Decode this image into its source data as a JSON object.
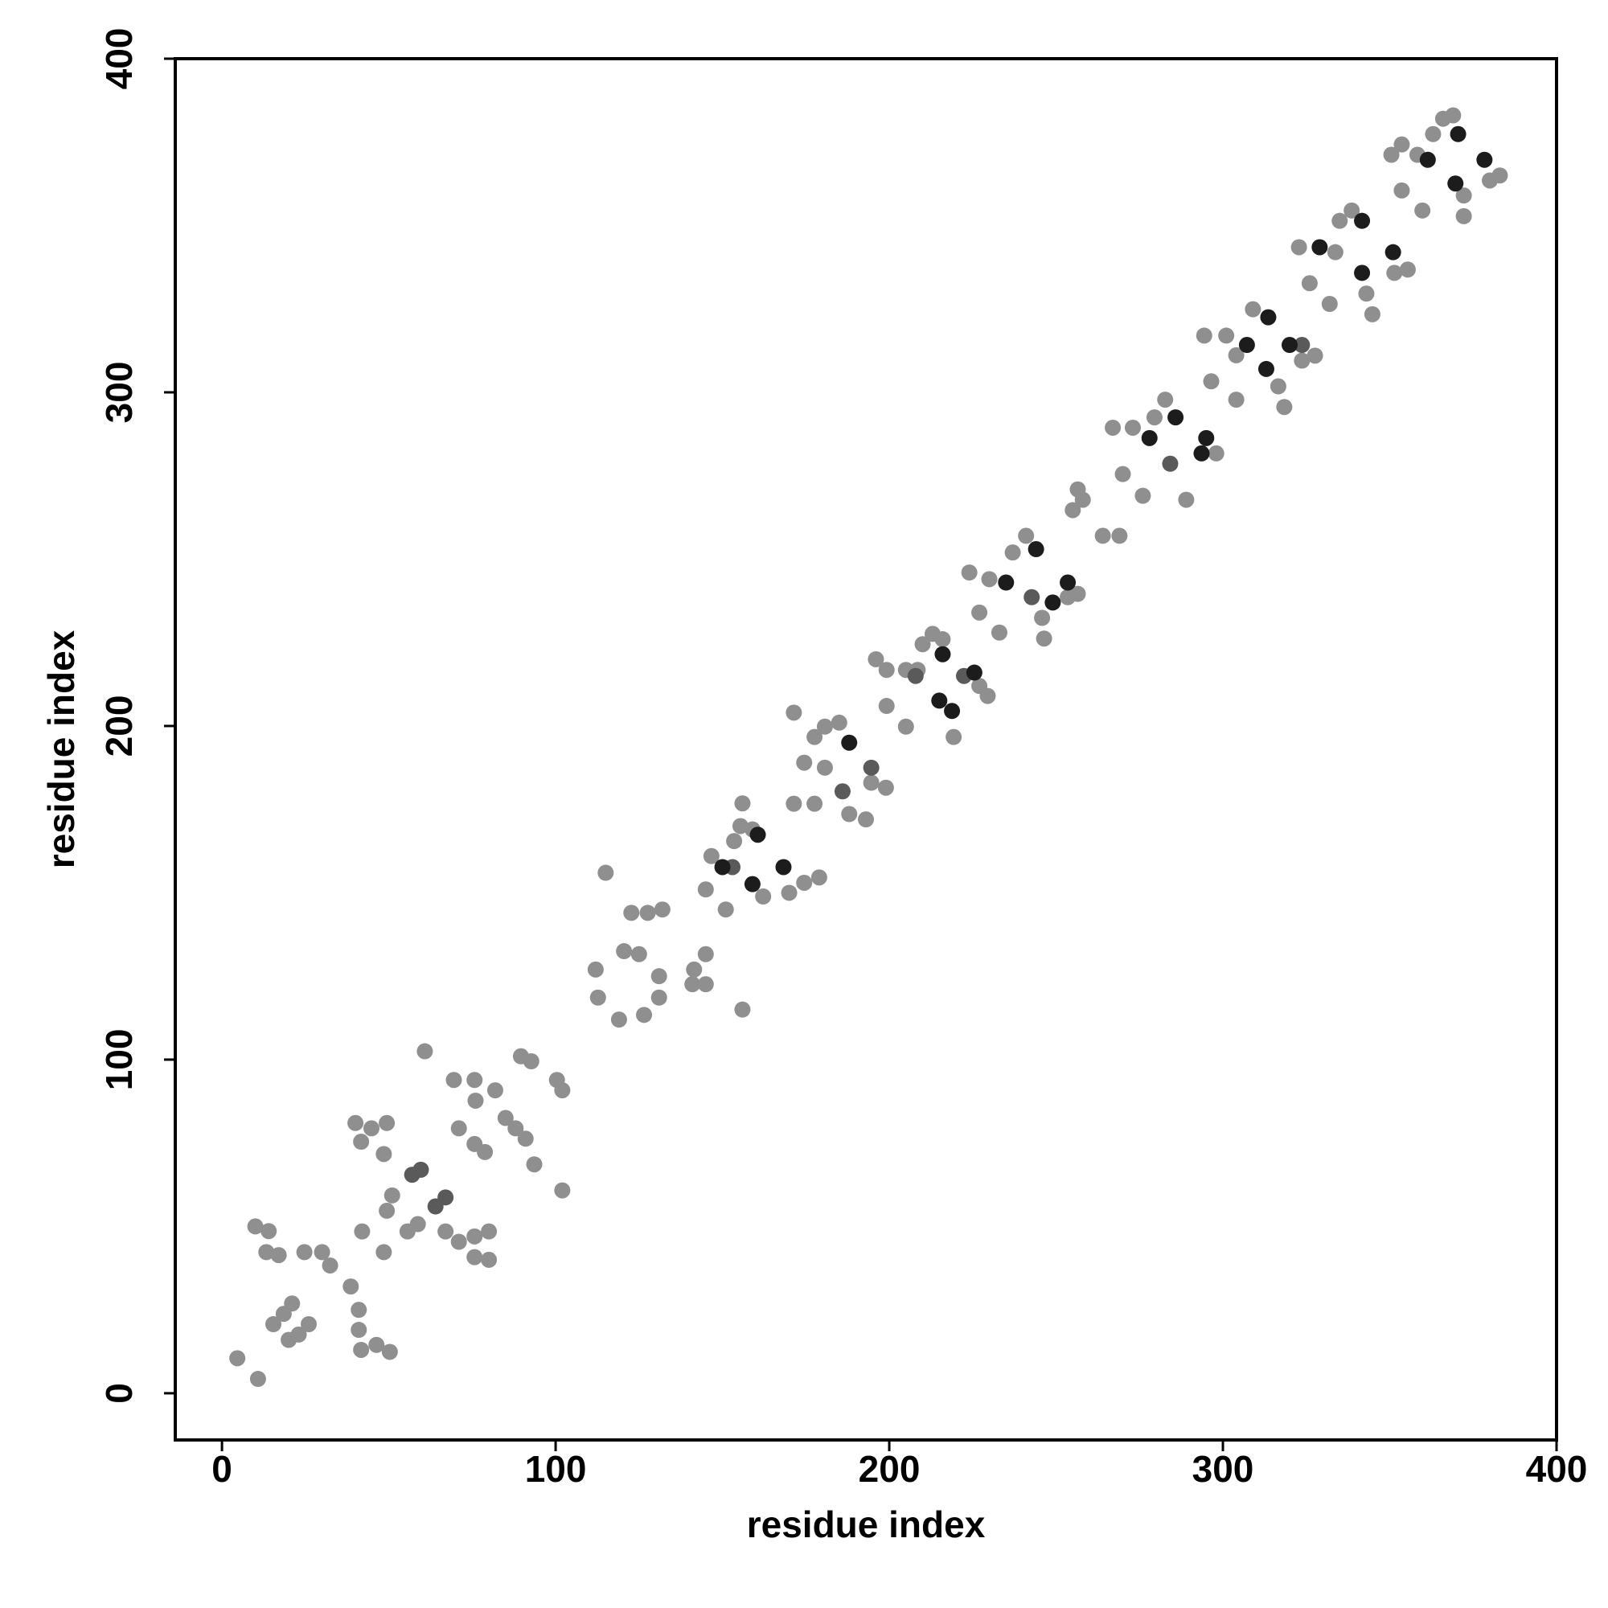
{
  "chart_data": {
    "type": "scatter",
    "xlabel": "residue index",
    "ylabel": "residue index",
    "xlim": [
      -14,
      400
    ],
    "ylim": [
      -14,
      400
    ],
    "xticks": [
      0,
      100,
      200,
      300,
      400
    ],
    "yticks": [
      0,
      100,
      200,
      300,
      400
    ],
    "series": [
      {
        "color": "#8f8f8f",
        "x": [
          4.6,
          10.8,
          10,
          14,
          13.3,
          17,
          24.7,
          30,
          32.4,
          15.4,
          18.5,
          21,
          20,
          23,
          26,
          38.6,
          41,
          41,
          41.7,
          46.3,
          50.3,
          40,
          44.8,
          49.4,
          41.7,
          48.5,
          42,
          48.5,
          49.4,
          55.6,
          51,
          58.7,
          67,
          71,
          75.7,
          80,
          75.7,
          80,
          60.8,
          69.5,
          75.7,
          81.9,
          71,
          75.7,
          78.8,
          85,
          88,
          91,
          89.6,
          92.7,
          93.6,
          100.4,
          102,
          102,
          76,
          115,
          112,
          112.7,
          119,
          120.5,
          125,
          122.7,
          127.6,
          132,
          131,
          131,
          126.5,
          141.5,
          145,
          141,
          145,
          156,
          145,
          151,
          146.7,
          153.5,
          155.4,
          156,
          159,
          162.2,
          170,
          174.5,
          179,
          171.4,
          177.6,
          174.5,
          180.7,
          185,
          180.7,
          177.6,
          188,
          193,
          194.6,
          199,
          171.4,
          196,
          199.2,
          205,
          199.2,
          205,
          208.5,
          210,
          213,
          216,
          219.3,
          227,
          229.5,
          224,
          227,
          233,
          230,
          237,
          241,
          245.8,
          246.4,
          256.5,
          253.5,
          255,
          258,
          256.5,
          264,
          269,
          270,
          267,
          273,
          276,
          279.5,
          282.7,
          289,
          298,
          296.5,
          294.4,
          301,
          304,
          304,
          309,
          316.6,
          318.4,
          327.6,
          323.7,
          322.8,
          326,
          332,
          333.7,
          335,
          338.6,
          343,
          344.8,
          351.4,
          355.4,
          350.5,
          353.6,
          353.6,
          359.8,
          358.3,
          363,
          366,
          369,
          372.2,
          372.2,
          380,
          383
        ],
        "y": [
          10.5,
          4.3,
          50,
          48.6,
          42.3,
          41.4,
          42.3,
          42.3,
          38.3,
          20.7,
          23.8,
          26.9,
          16,
          17.6,
          20.7,
          32,
          25,
          19,
          13,
          14.5,
          12.4,
          81,
          79.4,
          81,
          75.4,
          71.7,
          48.5,
          42.3,
          54.7,
          48.5,
          59.3,
          50.7,
          48.5,
          45.4,
          47,
          48.5,
          40.8,
          40,
          102.5,
          93.9,
          93.9,
          90.8,
          79.4,
          74.7,
          72.3,
          82.5,
          79.4,
          76.3,
          101,
          99.5,
          68.6,
          93.9,
          90.8,
          60.8,
          87.7,
          156,
          127,
          118.6,
          112,
          132.5,
          131.6,
          144,
          144,
          145,
          125,
          118.6,
          113.4,
          127,
          131.6,
          122.6,
          122.6,
          115,
          151,
          145,
          161,
          165.5,
          170,
          176.8,
          169,
          148.9,
          150,
          153,
          154.6,
          204,
          196.7,
          189,
          199.8,
          201,
          187.5,
          176.7,
          173.6,
          172,
          183,
          181.5,
          176.7,
          220,
          216.8,
          216.8,
          206,
          199.8,
          216.8,
          224.5,
          227.6,
          226,
          196.7,
          212,
          209,
          246,
          234,
          228,
          244,
          252,
          257,
          232.4,
          226.2,
          239.6,
          238.6,
          264.7,
          267.8,
          270.9,
          257,
          257,
          275.5,
          289.4,
          289.4,
          269,
          292.5,
          297.8,
          267.8,
          281.7,
          303.3,
          317,
          317,
          297.8,
          311.1,
          324.9,
          301.8,
          295.6,
          311,
          309.5,
          343.5,
          332.7,
          326.5,
          342,
          351.4,
          354.5,
          329.6,
          323.4,
          335.8,
          336.8,
          371.2,
          374.3,
          360.5,
          354.5,
          371.2,
          377.4,
          382,
          383,
          359,
          352.8,
          363.5,
          365
        ]
      },
      {
        "color": "#5a5a5a",
        "x": [
          57,
          59.6,
          64,
          67,
          153,
          186,
          194.6,
          207.9,
          222.4,
          242.7,
          284.2,
          323.7
        ],
        "y": [
          65.5,
          67,
          56,
          58.7,
          157.7,
          180.4,
          187.5,
          215,
          215,
          238.6,
          278.6,
          314.2
        ]
      },
      {
        "color": "#1c1c1c",
        "x": [
          150,
          160.6,
          159,
          168.3,
          188,
          216,
          215,
          218.8,
          225.5,
          235,
          244,
          249,
          253.5,
          278,
          285.8,
          293.6,
          295,
          307.2,
          313.6,
          313,
          320,
          329,
          341.7,
          341.7,
          351,
          361.4,
          370.5,
          369.7,
          378.4
        ],
        "y": [
          157.7,
          167.4,
          152.6,
          157.7,
          195,
          221.5,
          207.6,
          204.5,
          216,
          243,
          253,
          237,
          243,
          286.3,
          292.5,
          281.7,
          286.3,
          314.2,
          322.5,
          307,
          314.2,
          343.5,
          351.4,
          335.8,
          342,
          369.7,
          377.4,
          362.6,
          369.7
        ]
      }
    ]
  }
}
